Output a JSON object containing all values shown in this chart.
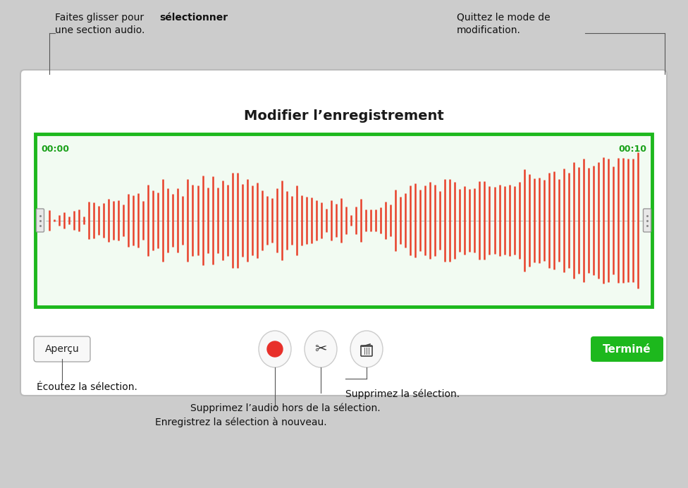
{
  "bg_color": "#cccccc",
  "panel_bg": "#ffffff",
  "panel_border": "#bbbbbb",
  "waveform_bg": "#f2fbf2",
  "waveform_border": "#1db81d",
  "waveform_color": "#e8402a",
  "title": "Modifier l’enregistrement",
  "time_start": "00:00",
  "time_end": "00:10",
  "time_color": "#18a018",
  "btn_apercu": "Aperçu",
  "btn_termine": "Terminé",
  "btn_termine_bg": "#1db81d",
  "btn_termine_color": "#ffffff",
  "ann_color": "#111111",
  "ann_tl_line1": "Faites glisser pour sélectionner",
  "ann_tl_line2": "une section audio.",
  "ann_tr_line1": "Quittez le mode de",
  "ann_tr_line2": "modification.",
  "ann_bl": "Écoutez la sélection.",
  "ann_bm1": "Enregistrez la sélection à nouveau.",
  "ann_bm2": "Supprimez l’audio hors de la sélection.",
  "ann_bm3": "Supprimez la sélection.",
  "line_color": "#555555",
  "handle_face": "#e8e8e8",
  "handle_edge": "#999999"
}
